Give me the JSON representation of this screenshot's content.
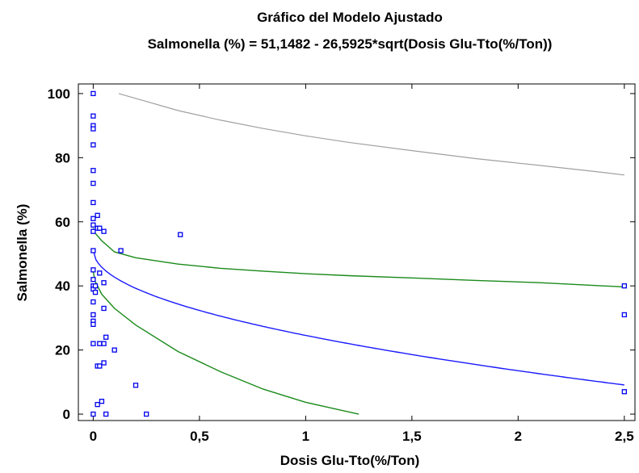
{
  "chart_data": {
    "type": "scatter",
    "title": "Gráfico del Modelo Ajustado",
    "subtitle": "Salmonella (%) = 51,1482 - 26,5925*sqrt(Dosis Glu-Tto(%/Ton))",
    "xlabel": "Dosis Glu-Tto(%/Ton)",
    "ylabel": "Salmonella (%)",
    "xlim": [
      -0.07,
      2.55
    ],
    "ylim": [
      -2,
      103
    ],
    "x_ticks": [
      0,
      0.5,
      1,
      1.5,
      2,
      2.5
    ],
    "x_tick_labels": [
      "0",
      "0,5",
      "1",
      "1,5",
      "2",
      "2,5"
    ],
    "y_ticks": [
      0,
      20,
      40,
      60,
      80,
      100
    ],
    "y_tick_labels": [
      "0",
      "20",
      "40",
      "60",
      "80",
      "100"
    ],
    "grid": false,
    "colors": {
      "points": "#0000ee",
      "fit": "#1a1aff",
      "confidence": "#1a8a1a",
      "prediction": "#a0a0a0",
      "axis": "#000000"
    },
    "points": [
      {
        "x": 0,
        "y": 100
      },
      {
        "x": 0,
        "y": 93
      },
      {
        "x": 0,
        "y": 90
      },
      {
        "x": 0,
        "y": 89
      },
      {
        "x": 0,
        "y": 84
      },
      {
        "x": 0,
        "y": 76
      },
      {
        "x": 0,
        "y": 72
      },
      {
        "x": 0,
        "y": 66
      },
      {
        "x": 0,
        "y": 61
      },
      {
        "x": 0,
        "y": 59
      },
      {
        "x": 0,
        "y": 57
      },
      {
        "x": 0,
        "y": 51
      },
      {
        "x": 0,
        "y": 45
      },
      {
        "x": 0,
        "y": 42
      },
      {
        "x": 0,
        "y": 40
      },
      {
        "x": 0,
        "y": 39
      },
      {
        "x": 0,
        "y": 35
      },
      {
        "x": 0,
        "y": 31
      },
      {
        "x": 0,
        "y": 29
      },
      {
        "x": 0,
        "y": 28
      },
      {
        "x": 0,
        "y": 22
      },
      {
        "x": 0,
        "y": 0
      },
      {
        "x": 0.01,
        "y": 40
      },
      {
        "x": 0.01,
        "y": 38
      },
      {
        "x": 0.02,
        "y": 62
      },
      {
        "x": 0.02,
        "y": 58
      },
      {
        "x": 0.02,
        "y": 15
      },
      {
        "x": 0.02,
        "y": 3
      },
      {
        "x": 0.03,
        "y": 58
      },
      {
        "x": 0.03,
        "y": 44
      },
      {
        "x": 0.03,
        "y": 22
      },
      {
        "x": 0.03,
        "y": 15
      },
      {
        "x": 0.04,
        "y": 4
      },
      {
        "x": 0.05,
        "y": 57
      },
      {
        "x": 0.05,
        "y": 41
      },
      {
        "x": 0.05,
        "y": 33
      },
      {
        "x": 0.05,
        "y": 22
      },
      {
        "x": 0.05,
        "y": 16
      },
      {
        "x": 0.06,
        "y": 24
      },
      {
        "x": 0.06,
        "y": 0
      },
      {
        "x": 0.1,
        "y": 20
      },
      {
        "x": 0.13,
        "y": 51
      },
      {
        "x": 0.2,
        "y": 9
      },
      {
        "x": 0.25,
        "y": 0
      },
      {
        "x": 0.41,
        "y": 56
      },
      {
        "x": 2.5,
        "y": 40
      },
      {
        "x": 2.5,
        "y": 31
      },
      {
        "x": 2.5,
        "y": 7
      }
    ],
    "fit": {
      "intercept": 51.1482,
      "coef": -26.5925,
      "transform": "sqrt",
      "x_range": [
        0,
        2.5
      ]
    },
    "confidence_upper": [
      [
        0,
        58
      ],
      [
        0.01,
        56.4
      ],
      [
        0.04,
        54.1
      ],
      [
        0.1,
        50.6
      ],
      [
        0.2,
        48.8
      ],
      [
        0.4,
        46.8
      ],
      [
        0.6,
        45.5
      ],
      [
        0.8,
        44.6
      ],
      [
        1,
        43.8
      ],
      [
        1.2,
        43.2
      ],
      [
        1.5,
        42.5
      ],
      [
        1.8,
        41.7
      ],
      [
        2.1,
        41
      ],
      [
        2.4,
        40
      ],
      [
        2.5,
        39.7
      ]
    ],
    "confidence_lower": [
      [
        0,
        44.3
      ],
      [
        0.01,
        41.3
      ],
      [
        0.04,
        37.4
      ],
      [
        0.1,
        33
      ],
      [
        0.2,
        27.8
      ],
      [
        0.4,
        19.5
      ],
      [
        0.6,
        13.2
      ],
      [
        0.8,
        7.8
      ],
      [
        1,
        3.7
      ],
      [
        1.1,
        2.2
      ],
      [
        1.25,
        0
      ]
    ],
    "prediction_upper": [
      [
        0.12,
        100
      ],
      [
        0.2,
        98.5
      ],
      [
        0.4,
        94.7
      ],
      [
        0.6,
        91.7
      ],
      [
        0.8,
        89.1
      ],
      [
        1,
        86.8
      ],
      [
        1.2,
        84.8
      ],
      [
        1.5,
        82.2
      ],
      [
        1.8,
        79.7
      ],
      [
        2.1,
        77.6
      ],
      [
        2.4,
        75.4
      ],
      [
        2.5,
        74.6
      ]
    ]
  }
}
